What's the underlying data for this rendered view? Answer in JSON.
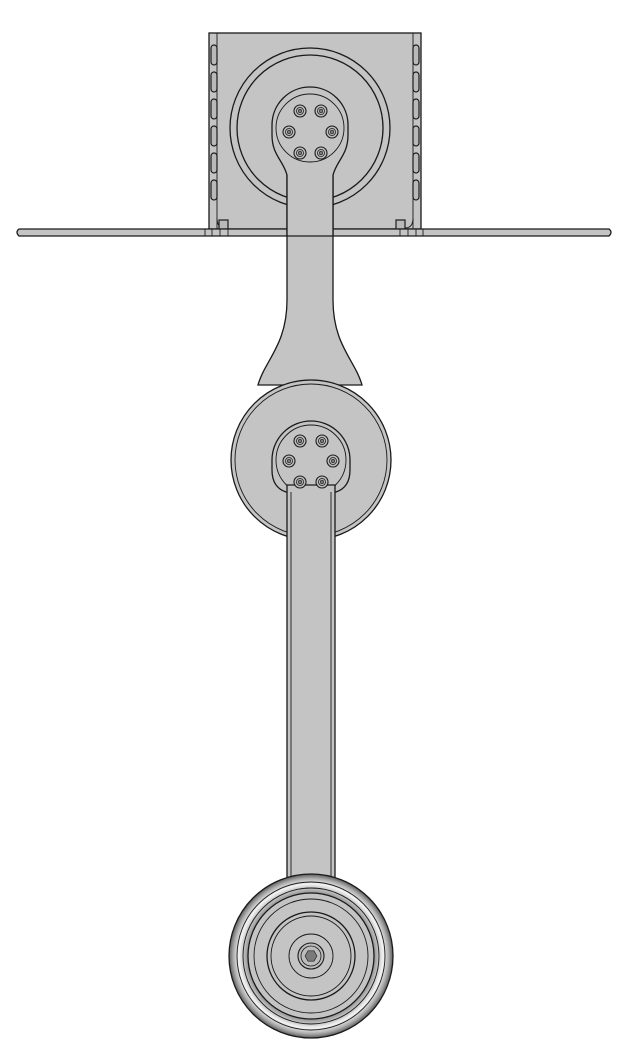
{
  "drawing": {
    "view": "front",
    "colors": {
      "background": "#ffffff",
      "part_fill": "#c4c4c4",
      "outline": "#1a1a1a",
      "wheel_highlight": "#f2f2f2",
      "bolt_socket": "#7a7a7a"
    },
    "components": [
      "mounting-bracket",
      "base-flange-plate",
      "upper-pivot-hub",
      "upper-arm-link",
      "middle-pivot-hub",
      "lower-arm-link",
      "caster-wheel",
      "axle-hex-bolt"
    ],
    "bolt_groups": [
      {
        "name": "upper-hub-bolts",
        "count": 6
      },
      {
        "name": "middle-hub-bolts",
        "count": 6
      }
    ]
  }
}
